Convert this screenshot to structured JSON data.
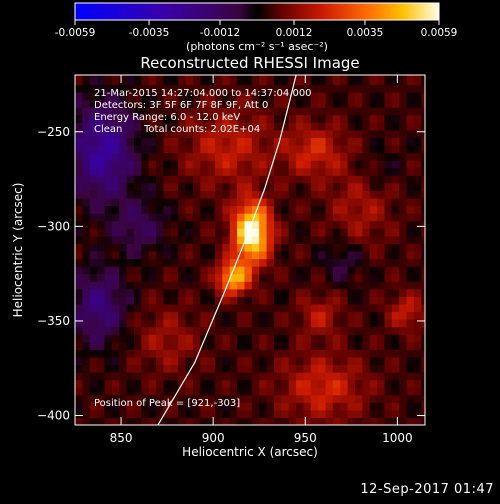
{
  "colorbar": {
    "ticks": [
      "-0.0059",
      "-0.0035",
      "-0.0012",
      "0.0012",
      "0.0035",
      "0.0059"
    ],
    "unit_label": "(photons cm⁻² s⁻¹ asec⁻²)",
    "range": [
      -0.0059,
      0.0059
    ]
  },
  "chart_data": {
    "type": "heatmap",
    "title": "Reconstructed RHESSI Image",
    "xlabel": "Heliocentric X (arcsec)",
    "ylabel": "Heliocentric Y (arcsec)",
    "xlim": [
      825,
      1015
    ],
    "ylim": [
      -405,
      -220
    ],
    "xticks": [
      850,
      900,
      950,
      1000
    ],
    "yticks": [
      -250,
      -300,
      -350,
      -400
    ],
    "xtick_labels": [
      "850",
      "900",
      "950",
      "1000"
    ],
    "ytick_labels": [
      "−250",
      "−300",
      "−350",
      "−400"
    ],
    "annotations": {
      "time": "21-Mar-2015 14:27:04.000 to 14:37:04.000",
      "detectors": "Detectors: 3F 5F 6F 7F 8F 9F, Att 0",
      "energy": "Energy Range: 6.0 - 12.0 keV",
      "clean": "Clean",
      "counts": "Total counts: 2.02E+04",
      "peak": "Position of Peak = [921,-303]"
    },
    "peak": [
      921,
      -303
    ],
    "sources": [
      {
        "x": 921,
        "y": -303,
        "amp": 0.0059,
        "sx": 7,
        "sy": 11
      },
      {
        "x": 911,
        "y": -327,
        "amp": 0.0042,
        "sx": 6,
        "sy": 6
      },
      {
        "x": 908,
        "y": -258,
        "amp": 0.0016,
        "sx": 16,
        "sy": 14
      },
      {
        "x": 955,
        "y": -260,
        "amp": 0.0018,
        "sx": 12,
        "sy": 10
      },
      {
        "x": 980,
        "y": -290,
        "amp": 0.0012,
        "sx": 12,
        "sy": 14
      },
      {
        "x": 958,
        "y": -347,
        "amp": 0.0014,
        "sx": 8,
        "sy": 8
      },
      {
        "x": 1005,
        "y": -345,
        "amp": 0.0016,
        "sx": 7,
        "sy": 7
      },
      {
        "x": 960,
        "y": -385,
        "amp": 0.0018,
        "sx": 16,
        "sy": 12
      },
      {
        "x": 875,
        "y": -360,
        "amp": 0.0011,
        "sx": 12,
        "sy": 12
      },
      {
        "x": 840,
        "y": -260,
        "amp": -0.003,
        "sx": 12,
        "sy": 18
      },
      {
        "x": 860,
        "y": -300,
        "amp": -0.0014,
        "sx": 10,
        "sy": 10
      },
      {
        "x": 838,
        "y": -342,
        "amp": -0.0022,
        "sx": 10,
        "sy": 14
      },
      {
        "x": 970,
        "y": -318,
        "amp": -0.001,
        "sx": 8,
        "sy": 8
      },
      {
        "x": 990,
        "y": -270,
        "amp": -0.0006,
        "sx": 8,
        "sy": 8
      }
    ],
    "limb_curve": [
      [
        870,
        -405
      ],
      [
        890,
        -372
      ],
      [
        906,
        -335
      ],
      [
        918,
        -306
      ],
      [
        928,
        -280
      ],
      [
        936,
        -255
      ],
      [
        942,
        -232
      ],
      [
        945,
        -220
      ]
    ]
  },
  "footer": {
    "stamp": "12-Sep-2017 01:47"
  }
}
